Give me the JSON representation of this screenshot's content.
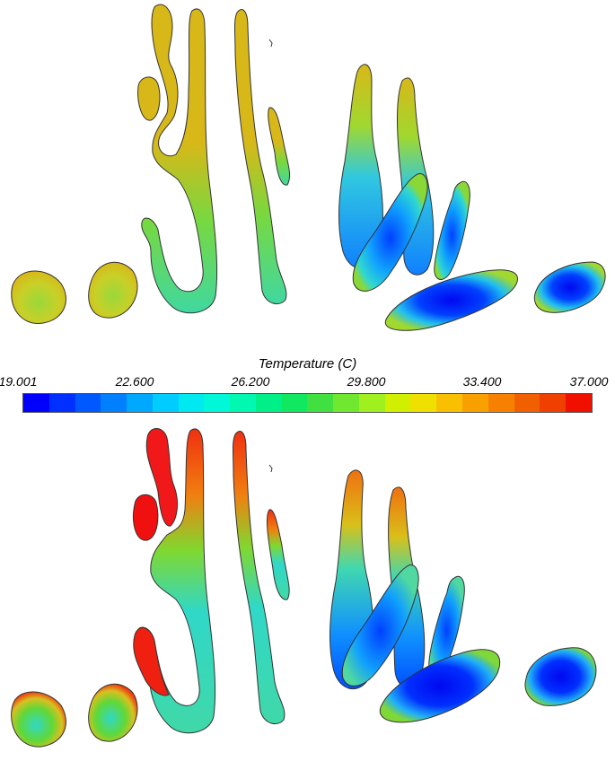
{
  "legend": {
    "title": "Temperature (C)",
    "ticks": [
      "19.001",
      "22.600",
      "26.200",
      "29.800",
      "33.400",
      "37.000"
    ],
    "min": 19.001,
    "max": 37.0,
    "colors": [
      "#0000ff",
      "#0030ff",
      "#0058ff",
      "#0080ff",
      "#00a8ff",
      "#00ccff",
      "#00e8f0",
      "#00f8d8",
      "#00f8b0",
      "#00f088",
      "#10e860",
      "#40e040",
      "#70e830",
      "#a0f020",
      "#d0f000",
      "#f0e000",
      "#f8c000",
      "#f8a000",
      "#f88000",
      "#f06000",
      "#f04000",
      "#f01000"
    ]
  },
  "colors": {
    "yellow": "#d8b818",
    "green": "#60d838",
    "teal": "#30d8c8",
    "blue": "#1070ff",
    "deep_blue": "#0008f0",
    "red": "#f01010",
    "outline": "#333333"
  }
}
